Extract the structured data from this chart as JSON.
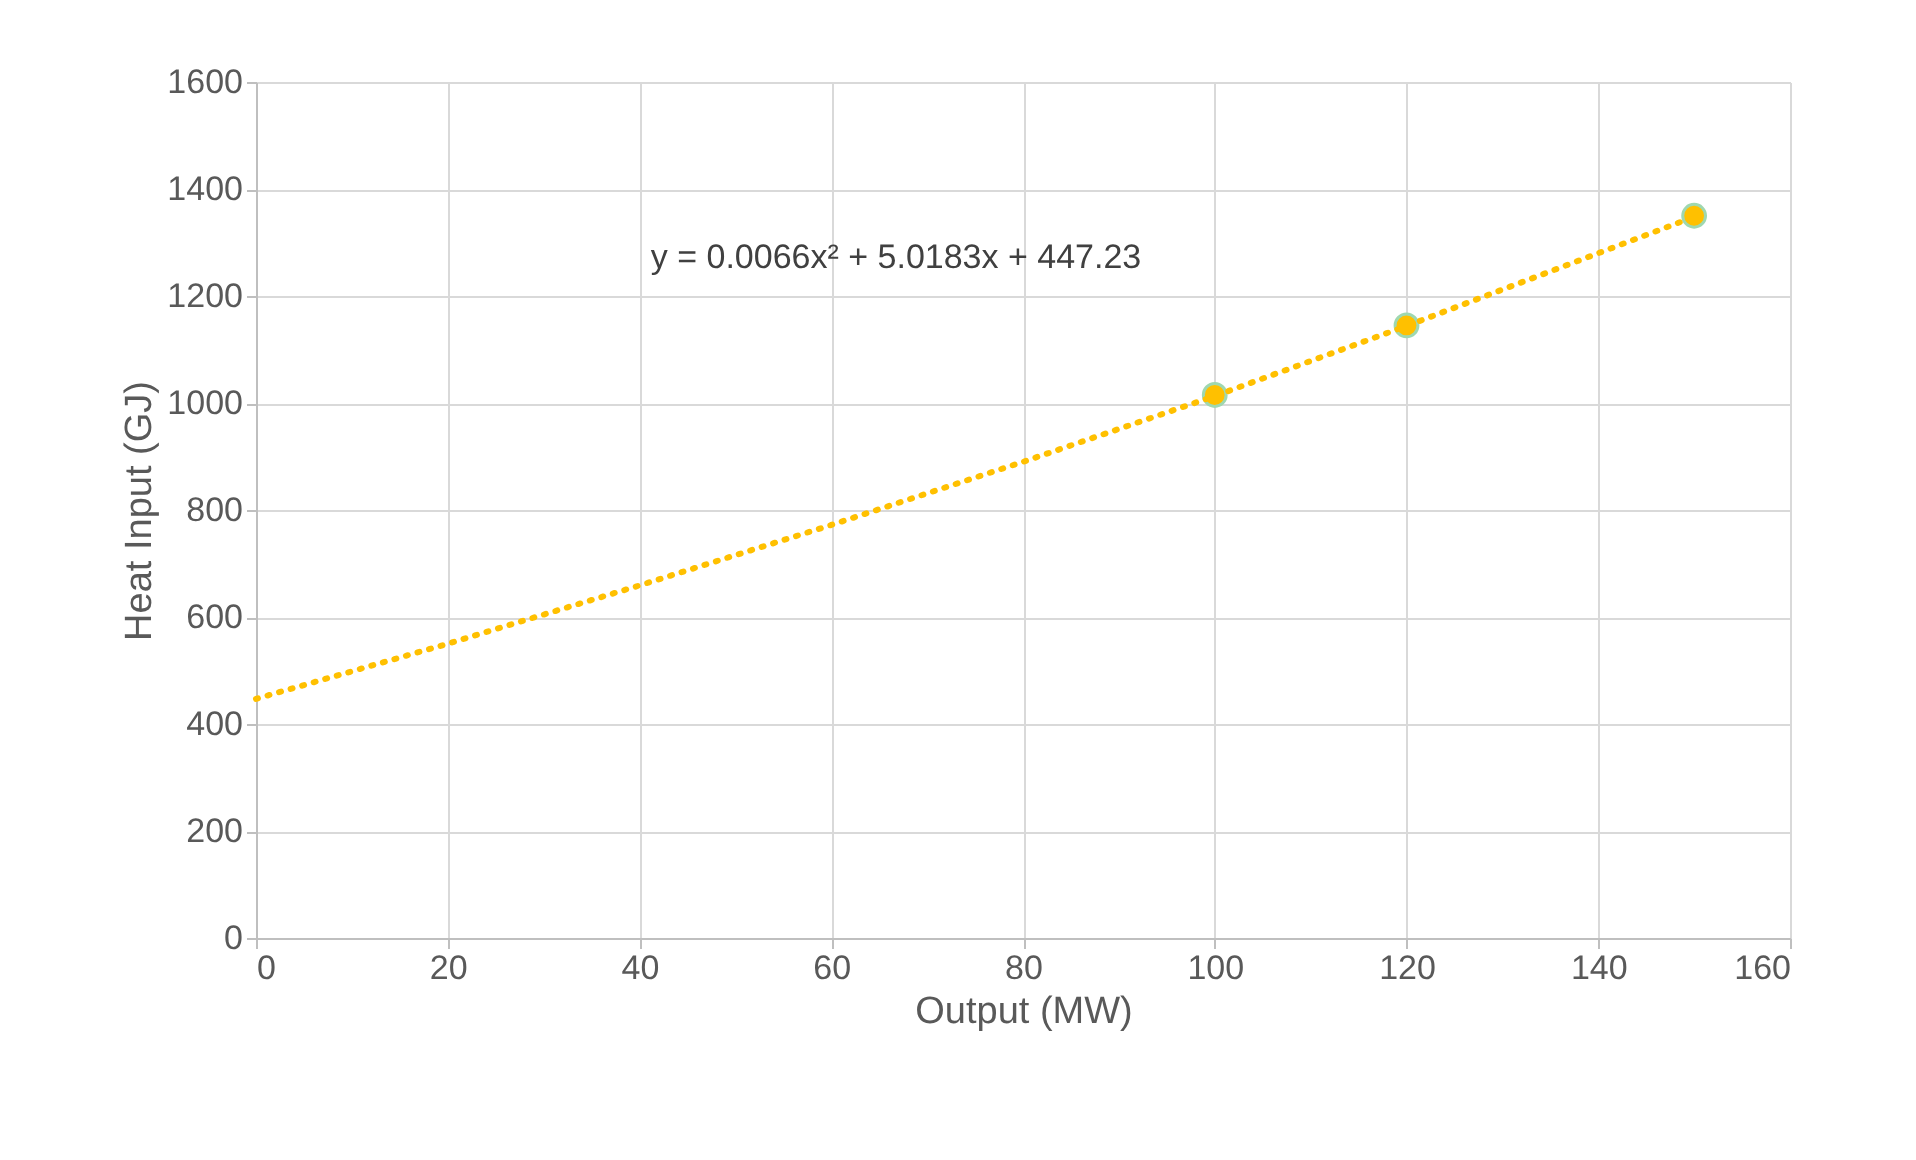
{
  "chart_data": {
    "type": "scatter",
    "xlabel": "Output (MW)",
    "ylabel": "Heat Input (GJ)",
    "xlim": [
      0,
      160
    ],
    "xticks": [
      0,
      20,
      40,
      60,
      80,
      100,
      120,
      140,
      160
    ],
    "ylim": [
      0,
      1600
    ],
    "yticks": [
      0,
      200,
      400,
      600,
      800,
      1000,
      1200,
      1400,
      1600
    ],
    "grid": true,
    "series": [
      {
        "color": "#ffc000",
        "marker": "circle",
        "x": [
          100,
          120,
          150
        ],
        "values": [
          1015,
          1145,
          1350
        ]
      },
      {
        "type": "line",
        "color": "#ffc000",
        "line_style": "dotted",
        "marker": "none",
        "x": [
          0,
          20,
          40,
          60,
          80,
          100,
          120,
          150
        ],
        "values": [
          447,
          550,
          659,
          772,
          890,
          1013,
          1144,
          1348
        ]
      }
    ],
    "annotations": [
      "y = 0.0066x² + 5.0183x + 447.23"
    ]
  }
}
